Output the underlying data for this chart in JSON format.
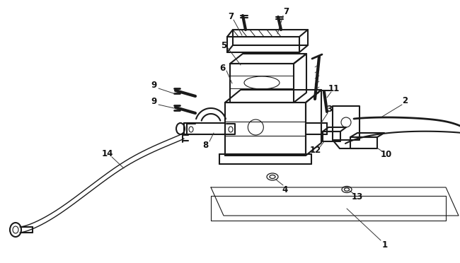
{
  "background_color": "#ffffff",
  "line_color": "#1a1a1a",
  "label_color": "#111111",
  "fig_width": 6.5,
  "fig_height": 3.72,
  "dpi": 100
}
